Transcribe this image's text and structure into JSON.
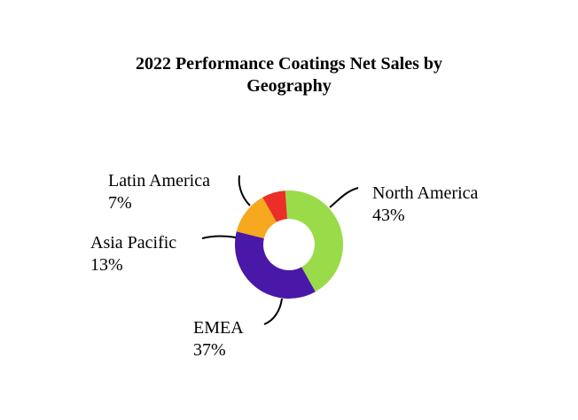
{
  "chart_data": {
    "type": "pie",
    "title_line1": "2022 Performance Coatings Net Sales by",
    "title_line2": "Geography",
    "donut": true,
    "slices": [
      {
        "label": "North America",
        "value": 43,
        "display": "43%",
        "color": "#9ADB4A"
      },
      {
        "label": "EMEA",
        "value": 37,
        "display": "37%",
        "color": "#4A18A8"
      },
      {
        "label": "Asia Pacific",
        "value": 13,
        "display": "13%",
        "color": "#F6A81E"
      },
      {
        "label": "Latin America",
        "value": 7,
        "display": "7%",
        "color": "#EB2E28"
      }
    ]
  }
}
